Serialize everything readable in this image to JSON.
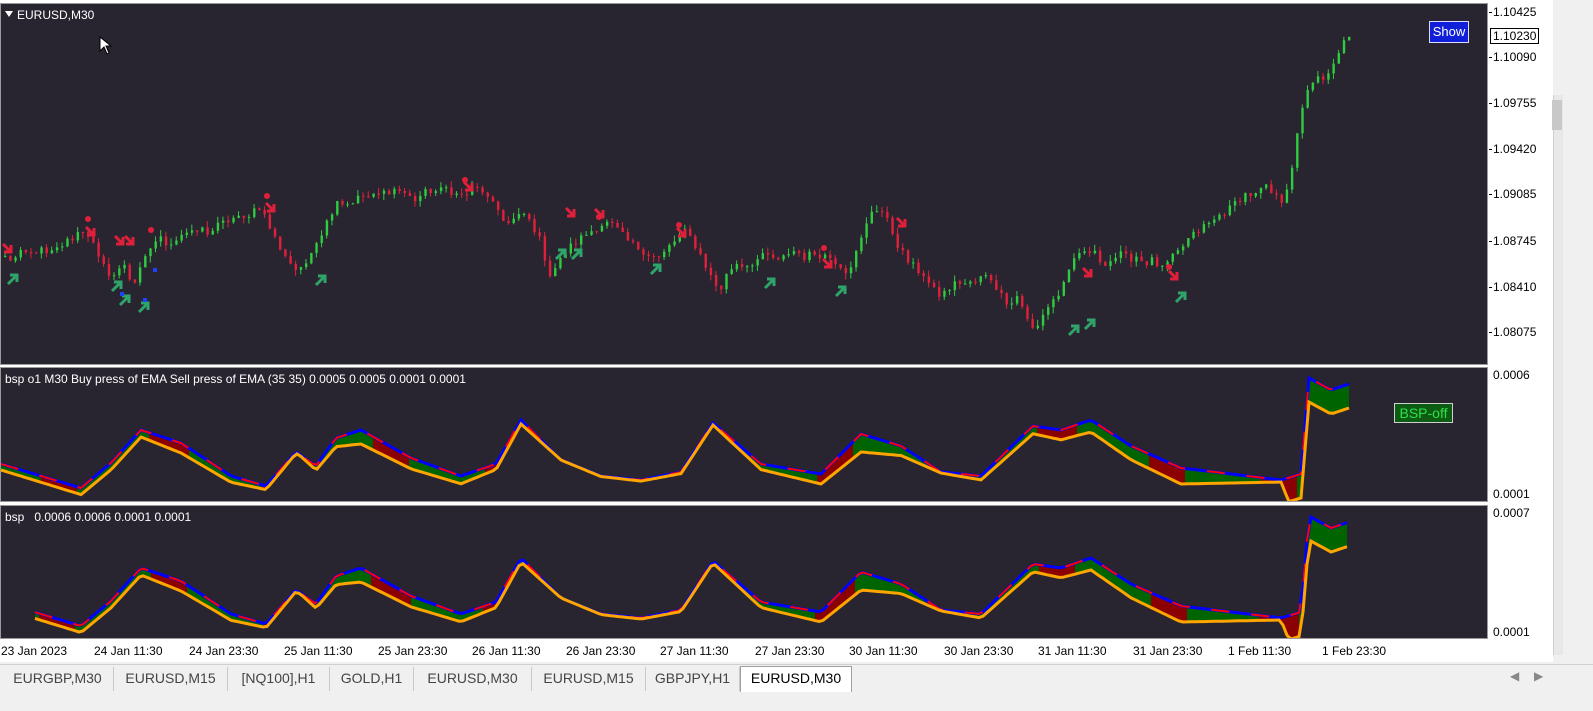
{
  "main_pane": {
    "title": "EURUSD,M30",
    "price_labels": [
      "1.10425",
      "1.10090",
      "1.09755",
      "1.09420",
      "1.09085",
      "1.08745",
      "1.08410",
      "1.08075"
    ],
    "current_price": "1.10230",
    "show_button": "Show"
  },
  "indicator1": {
    "title": "bsp o1 M30 Buy press of EMA Sell press of EMA (35 35) 0.0005 0.0005 0.0001 0.0001",
    "scale_top": "0.0006",
    "scale_bottom": "0.0001",
    "toggle_label": "BSP-off"
  },
  "indicator2": {
    "title": "bsp   0.0006 0.0006 0.0001 0.0001",
    "scale_top": "0.0007",
    "scale_bottom": "0.0001"
  },
  "time_axis": [
    "23 Jan 2023",
    "24 Jan 11:30",
    "24 Jan 23:30",
    "25 Jan 11:30",
    "25 Jan 23:30",
    "26 Jan 11:30",
    "26 Jan 23:30",
    "27 Jan 11:30",
    "27 Jan 23:30",
    "30 Jan 11:30",
    "30 Jan 23:30",
    "31 Jan 11:30",
    "31 Jan 23:30",
    "1 Feb 11:30",
    "1 Feb 23:30"
  ],
  "tabs": [
    {
      "label": "EURGBP,M30"
    },
    {
      "label": "EURUSD,M15"
    },
    {
      "label": "[NQ100],H1"
    },
    {
      "label": "GOLD,H1"
    },
    {
      "label": "EURUSD,M30"
    },
    {
      "label": "EURUSD,M15"
    },
    {
      "label": "GBPJPY,H1"
    },
    {
      "label": "EURUSD,M30",
      "active": true
    }
  ],
  "colors": {
    "background": "#292530",
    "bull_candle": "#2ecc40",
    "bear_candle": "#e0203a",
    "buy_arrow": "#2ea36a",
    "sell_arrow": "#e0203a",
    "buy_fill": "#006400",
    "sell_fill": "#8b0000",
    "buy_line": "#0000ff",
    "sell_line": "#ff0000",
    "ema_line": "#ffa500"
  },
  "chart_data": {
    "type": "candlestick",
    "symbol": "EURUSD",
    "timeframe": "M30",
    "ylim": [
      1.0795,
      1.1048
    ],
    "close_series": [
      1.087,
      1.0868,
      1.0873,
      1.0872,
      1.0876,
      1.0871,
      1.0875,
      1.088,
      1.0884,
      1.089,
      1.0885,
      1.0868,
      1.086,
      1.0857,
      1.0866,
      1.085,
      1.0862,
      1.0876,
      1.0884,
      1.088,
      1.0882,
      1.0888,
      1.0886,
      1.089,
      1.0887,
      1.0892,
      1.0895,
      1.0898,
      1.0896,
      1.0903,
      1.0906,
      1.0892,
      1.088,
      1.0871,
      1.0862,
      1.086,
      1.0876,
      1.0885,
      1.0897,
      1.0911,
      1.0907,
      1.091,
      1.0913,
      1.0912,
      1.0914,
      1.0917,
      1.0918,
      1.0915,
      1.091,
      1.0914,
      1.0917,
      1.0916,
      1.0919,
      1.0914,
      1.0913,
      1.0918,
      1.0918,
      1.0908,
      1.0903,
      1.0893,
      1.0897,
      1.09,
      1.0893,
      1.088,
      1.0858,
      1.0865,
      1.0875,
      1.088,
      1.0885,
      1.0889,
      1.0893,
      1.0894,
      1.0889,
      1.0882,
      1.0878,
      1.0875,
      1.0871,
      1.0869,
      1.0877,
      1.0883,
      1.0888,
      1.088,
      1.0869,
      1.0856,
      1.0846,
      1.086,
      1.0866,
      1.0864,
      1.0867,
      1.087,
      1.0871,
      1.0866,
      1.0873,
      1.0875,
      1.087,
      1.0873,
      1.0872,
      1.087,
      1.0866,
      1.086,
      1.0872,
      1.0888,
      1.0905,
      1.0903,
      1.0892,
      1.0878,
      1.0868,
      1.0862,
      1.0858,
      1.0847,
      1.0843,
      1.0848,
      1.0853,
      1.0851,
      1.0852,
      1.0857,
      1.0855,
      1.0844,
      1.0838,
      1.0843,
      1.083,
      1.0816,
      1.0829,
      1.084,
      1.0844,
      1.0862,
      1.0869,
      1.0874,
      1.0873,
      1.0866,
      1.0868,
      1.0872,
      1.0869,
      1.0871,
      1.0866,
      1.0868,
      1.0861,
      1.0868,
      1.0874,
      1.0882,
      1.0887,
      1.0892,
      1.0895,
      1.0901,
      1.0904,
      1.0911,
      1.0915,
      1.0913,
      1.092,
      1.0914,
      1.0909,
      1.0925,
      1.0958,
      1.0988,
      1.0996,
      1.0993,
      1.1002,
      1.1019,
      1.1023
    ]
  }
}
